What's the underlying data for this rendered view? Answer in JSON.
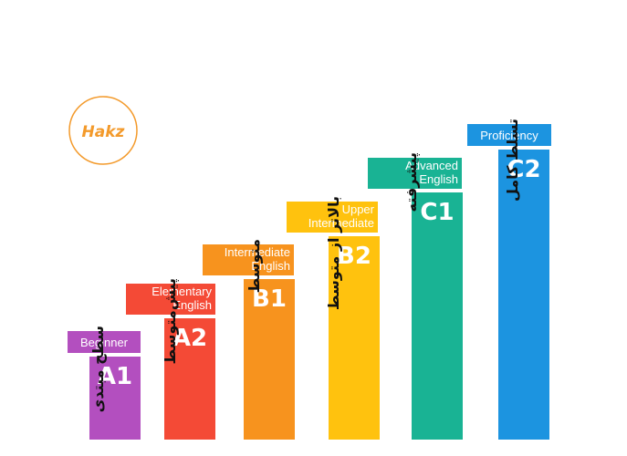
{
  "logo": {
    "text": "Hakz",
    "color": "#f39a2b"
  },
  "chart_data": {
    "type": "bar",
    "categories": [
      "A1",
      "A2",
      "B1",
      "B2",
      "C1",
      "C2"
    ],
    "english_labels": [
      [
        "Beginner"
      ],
      [
        "Elementary",
        "English"
      ],
      [
        "Intermediate",
        "English"
      ],
      [
        "Upper",
        "Intermediate"
      ],
      [
        "Advanced",
        "English"
      ],
      [
        "Proficiency"
      ]
    ],
    "persian_labels": [
      "سطح مبتدی",
      "پیش‌متوسط",
      "متوسط",
      "بالاتر از متوسط",
      "پیشرفته",
      "تسلط کامل"
    ],
    "values": [
      1,
      2,
      3,
      4,
      5,
      6
    ],
    "colors": [
      "#b34fbf",
      "#f44a36",
      "#f7931e",
      "#ffc20e",
      "#19b394",
      "#1c94e0"
    ]
  }
}
